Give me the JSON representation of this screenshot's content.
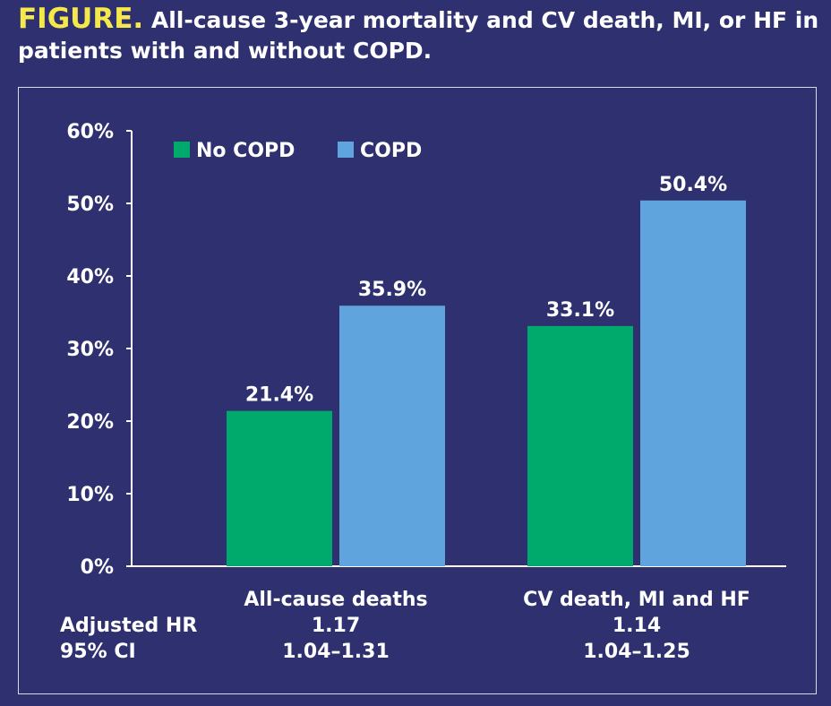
{
  "title": {
    "prefix": "FIGURE.",
    "text": "All-cause 3-year mortality and CV death, MI, or HF in patients with and without COPD."
  },
  "colors": {
    "background": "#2e3070",
    "no_copd": "#00aa6c",
    "copd": "#5fa4dc",
    "title_accent": "#f5e84a"
  },
  "chart_data": {
    "type": "bar",
    "categories": [
      "All-cause deaths",
      "CV death, MI and HF"
    ],
    "series": [
      {
        "name": "No COPD",
        "values": [
          21.4,
          33.1
        ],
        "labels": [
          "21.4%",
          "33.1%"
        ]
      },
      {
        "name": "COPD",
        "values": [
          35.9,
          50.4
        ],
        "labels": [
          "35.9%",
          "50.4%"
        ]
      }
    ],
    "ylim": [
      0,
      60
    ],
    "yticks": [
      0,
      10,
      20,
      30,
      40,
      50,
      60
    ],
    "ytick_labels": [
      "0%",
      "10%",
      "20%",
      "30%",
      "40%",
      "50%",
      "60%"
    ],
    "legend_position": "top-left",
    "grid": false
  },
  "stats": {
    "adjusted_hr_label": "Adjusted HR",
    "ci_label": "95% CI",
    "adjusted_hr": [
      "1.17",
      "1.14"
    ],
    "ci": [
      "1.04–1.31",
      "1.04–1.25"
    ]
  }
}
